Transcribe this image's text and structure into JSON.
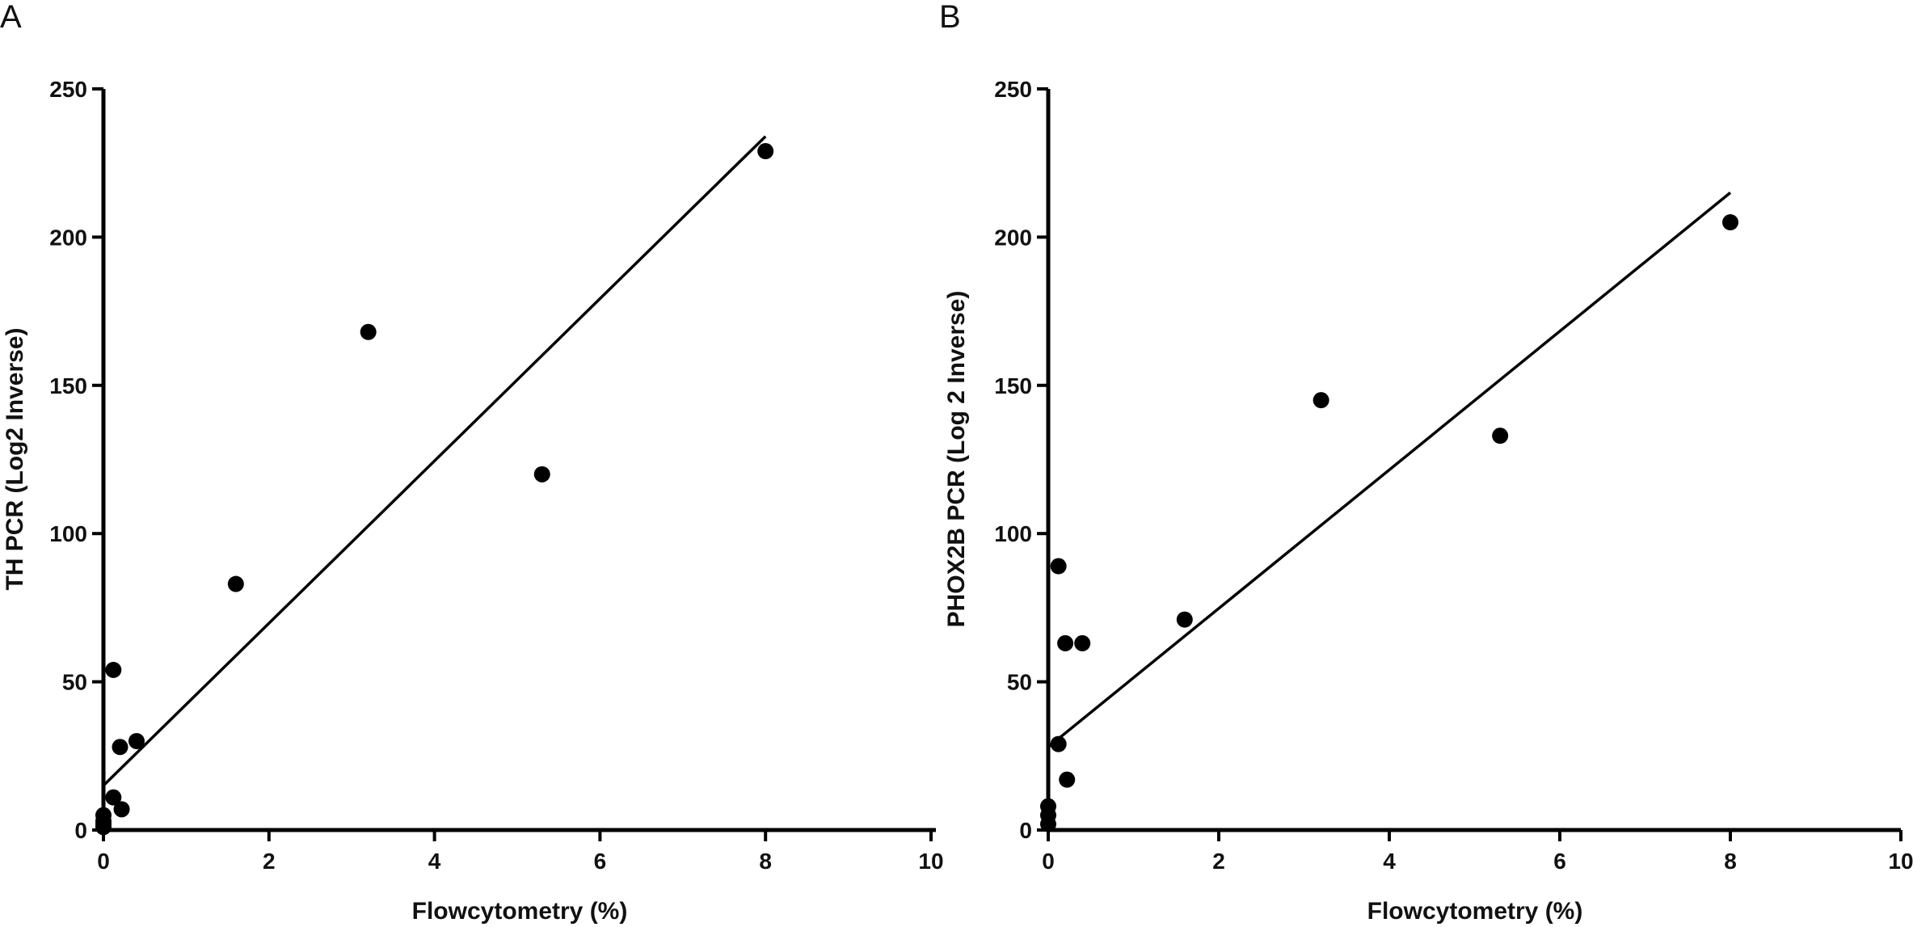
{
  "chart_data": [
    {
      "type": "scatter",
      "panel_label": "A",
      "xlabel": "Flowcytometry (%)",
      "ylabel": "TH PCR (Log2 Inverse)",
      "xlim": [
        0,
        10
      ],
      "ylim": [
        0,
        250
      ],
      "x_ticks": [
        0,
        2,
        4,
        6,
        8,
        10
      ],
      "y_ticks": [
        0,
        50,
        100,
        150,
        200,
        250
      ],
      "x_tick_labels": [
        "0",
        "2",
        "4",
        "6",
        "8",
        "10"
      ],
      "y_tick_labels": [
        "0",
        "50",
        "100",
        "150",
        "200",
        "250"
      ],
      "grid": false,
      "points": [
        {
          "x": 0,
          "y": 1
        },
        {
          "x": 0,
          "y": 2
        },
        {
          "x": 0,
          "y": 3
        },
        {
          "x": 0,
          "y": 5
        },
        {
          "x": 0.12,
          "y": 54
        },
        {
          "x": 0.12,
          "y": 11
        },
        {
          "x": 0.2,
          "y": 28
        },
        {
          "x": 0.22,
          "y": 7
        },
        {
          "x": 0.4,
          "y": 30
        },
        {
          "x": 1.6,
          "y": 83
        },
        {
          "x": 3.2,
          "y": 168
        },
        {
          "x": 5.3,
          "y": 120
        },
        {
          "x": 8.0,
          "y": 229
        }
      ],
      "fit_line": {
        "x": [
          0,
          8.0
        ],
        "y": [
          15,
          234
        ]
      }
    },
    {
      "type": "scatter",
      "panel_label": "B",
      "xlabel": "Flowcytometry (%)",
      "ylabel": "PHOX2B PCR (Log 2 Inverse)",
      "xlim": [
        0,
        10
      ],
      "ylim": [
        0,
        250
      ],
      "x_ticks": [
        0,
        2,
        4,
        6,
        8,
        10
      ],
      "y_ticks": [
        0,
        50,
        100,
        150,
        200,
        250
      ],
      "x_tick_labels": [
        "0",
        "2",
        "4",
        "6",
        "8",
        "10"
      ],
      "y_tick_labels": [
        "0",
        "50",
        "100",
        "150",
        "200",
        "250"
      ],
      "grid": false,
      "points": [
        {
          "x": 0,
          "y": 2
        },
        {
          "x": 0,
          "y": 5
        },
        {
          "x": 0,
          "y": 8
        },
        {
          "x": 0.12,
          "y": 89
        },
        {
          "x": 0.12,
          "y": 29
        },
        {
          "x": 0.2,
          "y": 63
        },
        {
          "x": 0.22,
          "y": 17
        },
        {
          "x": 0.4,
          "y": 63
        },
        {
          "x": 1.6,
          "y": 71
        },
        {
          "x": 3.2,
          "y": 145
        },
        {
          "x": 5.3,
          "y": 133
        },
        {
          "x": 8.0,
          "y": 205
        }
      ],
      "fit_line": {
        "x": [
          0,
          8.0
        ],
        "y": [
          28,
          215
        ]
      }
    }
  ]
}
